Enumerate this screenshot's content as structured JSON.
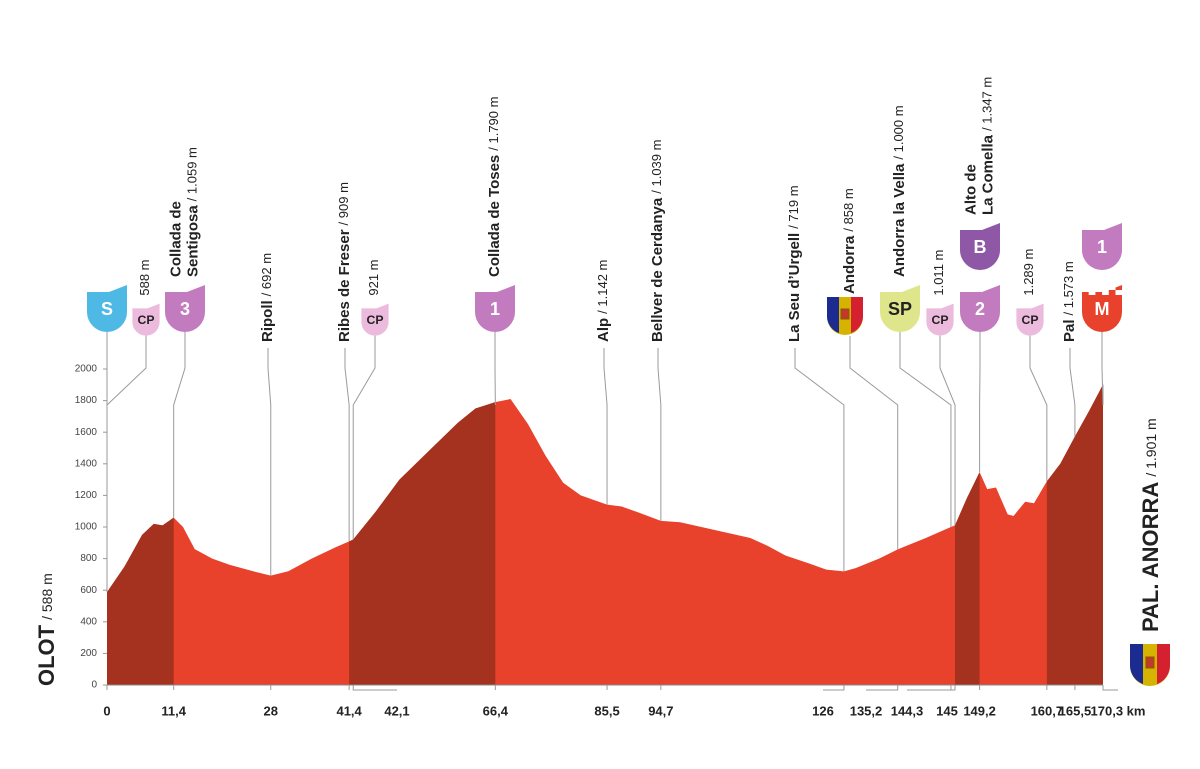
{
  "chart_data": {
    "type": "area",
    "start": {
      "name": "OLOT",
      "elev": "/ 588 m"
    },
    "finish": {
      "name": "PAL. ANORRA",
      "elev": "/ 1.901 m"
    },
    "profile": {
      "km": [
        0,
        3,
        6,
        8,
        9.5,
        11.4,
        13,
        15,
        18,
        21,
        25,
        28,
        31,
        35,
        39,
        41.4,
        42.1,
        46,
        50,
        55,
        60,
        63,
        66.4,
        69,
        72,
        75,
        78,
        81,
        85.5,
        88,
        91,
        94.7,
        98,
        104,
        110,
        113,
        116,
        120,
        123,
        126,
        128,
        132,
        135.2,
        140,
        144.3,
        145,
        147,
        149.2,
        150.5,
        152,
        154,
        155,
        157,
        158.5,
        160.7,
        163,
        165.5,
        168,
        170.3
      ],
      "elevation": [
        588,
        750,
        950,
        1020,
        1010,
        1059,
        1000,
        860,
        800,
        760,
        720,
        692,
        720,
        800,
        870,
        909,
        921,
        1100,
        1300,
        1480,
        1660,
        1750,
        1790,
        1810,
        1650,
        1450,
        1280,
        1200,
        1142,
        1130,
        1090,
        1039,
        1030,
        980,
        930,
        880,
        820,
        770,
        730,
        719,
        740,
        800,
        858,
        930,
        1000,
        1011,
        1180,
        1347,
        1240,
        1250,
        1080,
        1070,
        1160,
        1150,
        1289,
        1400,
        1573,
        1740,
        1901
      ]
    },
    "climbs": [
      [
        0,
        11.4
      ],
      [
        41.4,
        66.4
      ],
      [
        145,
        149.2
      ],
      [
        160.7,
        170.3
      ]
    ],
    "color": "#e8412c",
    "climb_color": "#a5311f",
    "xlim": [
      0,
      170.3
    ],
    "ylim": [
      0,
      2000
    ],
    "yticks": [
      0,
      200,
      400,
      600,
      800,
      1000,
      1200,
      1400,
      1600,
      1800,
      2000
    ],
    "xticks": [
      0,
      {
        "value": 11.4,
        "label": "11,4"
      },
      28,
      {
        "value": 41.4,
        "label": "41,4"
      },
      {
        "value": 42.1,
        "label": "42,1"
      },
      {
        "value": 66.4,
        "label": "66,4"
      },
      {
        "value": 85.5,
        "label": "85,5"
      },
      {
        "value": 94.7,
        "label": "94,7"
      },
      126,
      {
        "value": 135.2,
        "label": "135,2"
      },
      {
        "value": 144.3,
        "label": "144,3"
      },
      145,
      {
        "value": 149.2,
        "label": "149,2"
      },
      {
        "value": 160.7,
        "label": "160,7"
      },
      {
        "value": 165.5,
        "label": "165,5"
      },
      {
        "value": 170.3,
        "label": "170,3 km"
      }
    ],
    "waypoints": [
      {
        "km": 0,
        "badges": [
          {
            "label": "S",
            "color": "#4fb9e6",
            "text_color": "#ffffff"
          }
        ]
      },
      {
        "km": 0,
        "elev": "588 m",
        "badges": [
          {
            "label": "CP",
            "color": "#ebbadc",
            "text_color": "#222222"
          }
        ]
      },
      {
        "km": 11.4,
        "name": [
          "Collada de",
          "Sentigosa"
        ],
        "elev": "/ 1.059 m",
        "badges": [
          {
            "label": "3",
            "color": "#c27bbf",
            "text_color": "#ffffff"
          }
        ]
      },
      {
        "km": 28,
        "name": [
          "Ripoll"
        ],
        "elev": "/ 692 m"
      },
      {
        "km": 41.4,
        "name": [
          "Ribes de Freser"
        ],
        "elev": "/ 909 m"
      },
      {
        "km": 42.1,
        "elev": "921 m",
        "badges": [
          {
            "label": "CP",
            "color": "#ebbadc",
            "text_color": "#222222"
          }
        ]
      },
      {
        "km": 66.4,
        "name": [
          "Collada de Toses"
        ],
        "elev": "/ 1.790 m",
        "badges": [
          {
            "label": "1",
            "color": "#c27bbf",
            "text_color": "#ffffff"
          }
        ]
      },
      {
        "km": 85.5,
        "name": [
          "Alp"
        ],
        "elev": "/ 1.142 m"
      },
      {
        "km": 94.7,
        "name": [
          "Bellver de Cerdanya"
        ],
        "elev": "/ 1.039 m"
      },
      {
        "km": 126,
        "name": [
          "La Seu d’Urgell"
        ],
        "elev": "/ 719 m"
      },
      {
        "km": 135.2,
        "name": [
          "Andorra"
        ],
        "elev": "/ 858 m"
      },
      {
        "km": 144.3,
        "name": [
          "Andorra la Vella"
        ],
        "elev": "/ 1.000 m",
        "badges": [
          {
            "label": "SP",
            "color": "#dfe58a",
            "text_color": "#222222"
          }
        ]
      },
      {
        "km": 145,
        "elev": "1.011 m",
        "badges": [
          {
            "label": "CP",
            "color": "#ebbadc",
            "text_color": "#222222"
          }
        ]
      },
      {
        "km": 149.2,
        "name": [
          "Alto de",
          "La Comella"
        ],
        "elev": "/ 1.347 m",
        "badges": [
          {
            "label": "2",
            "color": "#c27bbf",
            "text_color": "#ffffff"
          },
          {
            "label": "B",
            "color": "#8e58a6",
            "text_color": "#ffffff"
          }
        ]
      },
      {
        "km": 160.7,
        "elev": "1.289 m",
        "badges": [
          {
            "label": "CP",
            "color": "#ebbadc",
            "text_color": "#222222"
          }
        ]
      },
      {
        "km": 165.5,
        "name": [
          "Pal"
        ],
        "elev": "/ 1.573 m"
      },
      {
        "km": 170.3,
        "badges": [
          {
            "label": "M",
            "color": "#e8412c",
            "text_color": "#ffffff"
          },
          {
            "label": "1",
            "color": "#c27bbf",
            "text_color": "#ffffff"
          }
        ]
      }
    ]
  }
}
